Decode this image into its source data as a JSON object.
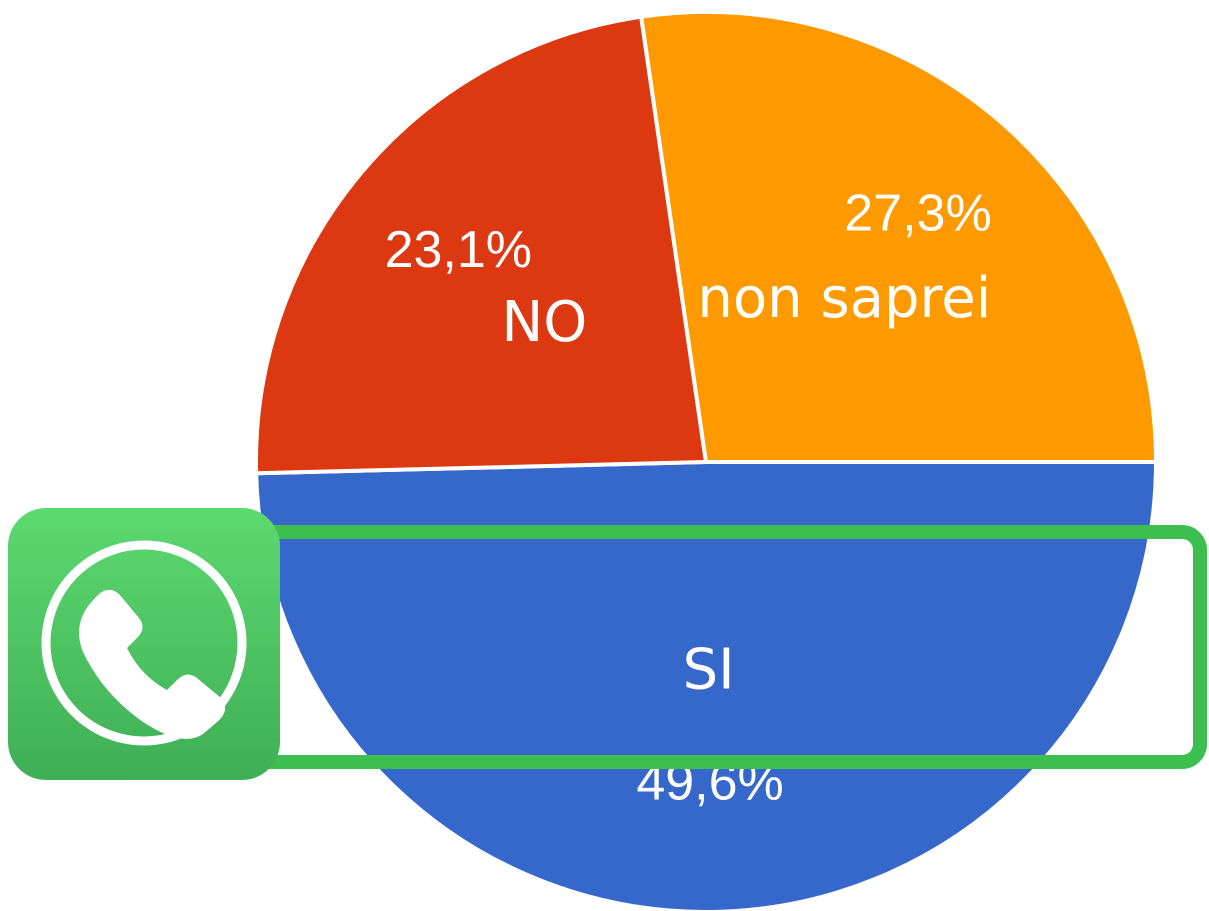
{
  "chart_data": {
    "type": "pie",
    "categories": [
      "SI",
      "NO",
      "non saprei"
    ],
    "values": [
      49.6,
      23.1,
      27.3
    ],
    "value_labels": [
      "49,6%",
      "23,1%",
      "27,3%"
    ],
    "colors": [
      "#3668cc",
      "#dc3912",
      "#ff9900"
    ]
  }
}
